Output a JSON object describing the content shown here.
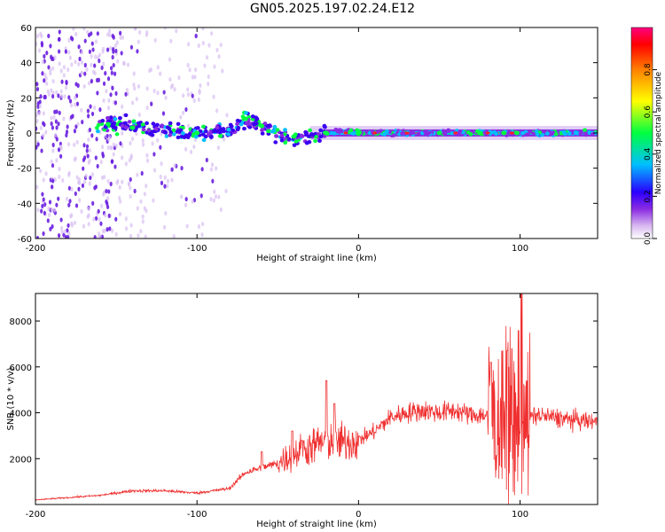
{
  "title": "GN05.2025.197.02.24.E12",
  "chart_data": [
    {
      "type": "heatmap",
      "xlabel": "Height of straight line (km)",
      "ylabel": "Frequency (Hz)",
      "xlim": [
        -200,
        148
      ],
      "ylim": [
        -60,
        60
      ],
      "xticks": [
        -200,
        -100,
        0,
        100
      ],
      "yticks": [
        -60,
        -40,
        -20,
        0,
        20,
        40,
        60
      ],
      "colorbar": {
        "label": "Normalized spectral amplitude",
        "range": [
          0.0,
          1.0
        ],
        "ticks": [
          0.0,
          0.2,
          0.4,
          0.6,
          0.8
        ],
        "colors": [
          "#ffffff",
          "#d8b8f0",
          "#8a2be2",
          "#2a00ff",
          "#00bfff",
          "#00ff40",
          "#ffff00",
          "#ff8000",
          "#ff0000",
          "#ff0080"
        ]
      },
      "ridge": {
        "description": "energy concentrated near 0 Hz",
        "x": [
          -160,
          -140,
          -120,
          -100,
          -80,
          -70,
          -60,
          -50,
          -40,
          -30,
          -20,
          -10,
          0,
          50,
          100,
          148
        ],
        "freq": [
          5,
          4,
          2,
          0,
          2,
          8,
          4,
          0,
          -4,
          -2,
          0,
          1,
          0,
          0,
          0,
          0
        ]
      }
    },
    {
      "type": "line",
      "xlabel": "Height of straight line (km)",
      "ylabel": "SNR (10 * v/v)",
      "xlim": [
        -200,
        148
      ],
      "ylim": [
        0,
        9200
      ],
      "xticks": [
        -200,
        -100,
        0,
        100
      ],
      "yticks": [
        2000,
        4000,
        6000,
        8000
      ],
      "color": "#f03030",
      "series_envelope": {
        "x": [
          -200,
          -180,
          -160,
          -140,
          -120,
          -100,
          -80,
          -70,
          -60,
          -50,
          -40,
          -30,
          -20,
          -10,
          0,
          10,
          20,
          30,
          40,
          50,
          60,
          70,
          80,
          90,
          100,
          110,
          120,
          130,
          148
        ],
        "y": [
          200,
          300,
          400,
          600,
          600,
          500,
          700,
          1400,
          1600,
          1800,
          2200,
          2500,
          2800,
          2700,
          2800,
          3200,
          3800,
          4000,
          4100,
          4000,
          4100,
          3900,
          3900,
          4200,
          3700,
          3900,
          3800,
          3700,
          3600
        ]
      },
      "spikes": [
        {
          "x": -60,
          "y": 2300
        },
        {
          "x": -41,
          "y": 3200
        },
        {
          "x": -35,
          "y": 2800
        },
        {
          "x": -20,
          "y": 5400
        },
        {
          "x": -15,
          "y": 4400
        },
        {
          "x": 82,
          "y": 6200
        },
        {
          "x": 89,
          "y": 6700
        },
        {
          "x": 92,
          "y": 6700
        },
        {
          "x": 95,
          "y": 6800
        },
        {
          "x": 99,
          "y": 7600
        },
        {
          "x": 101,
          "y": 9200
        },
        {
          "x": 104,
          "y": 5400
        }
      ]
    }
  ]
}
